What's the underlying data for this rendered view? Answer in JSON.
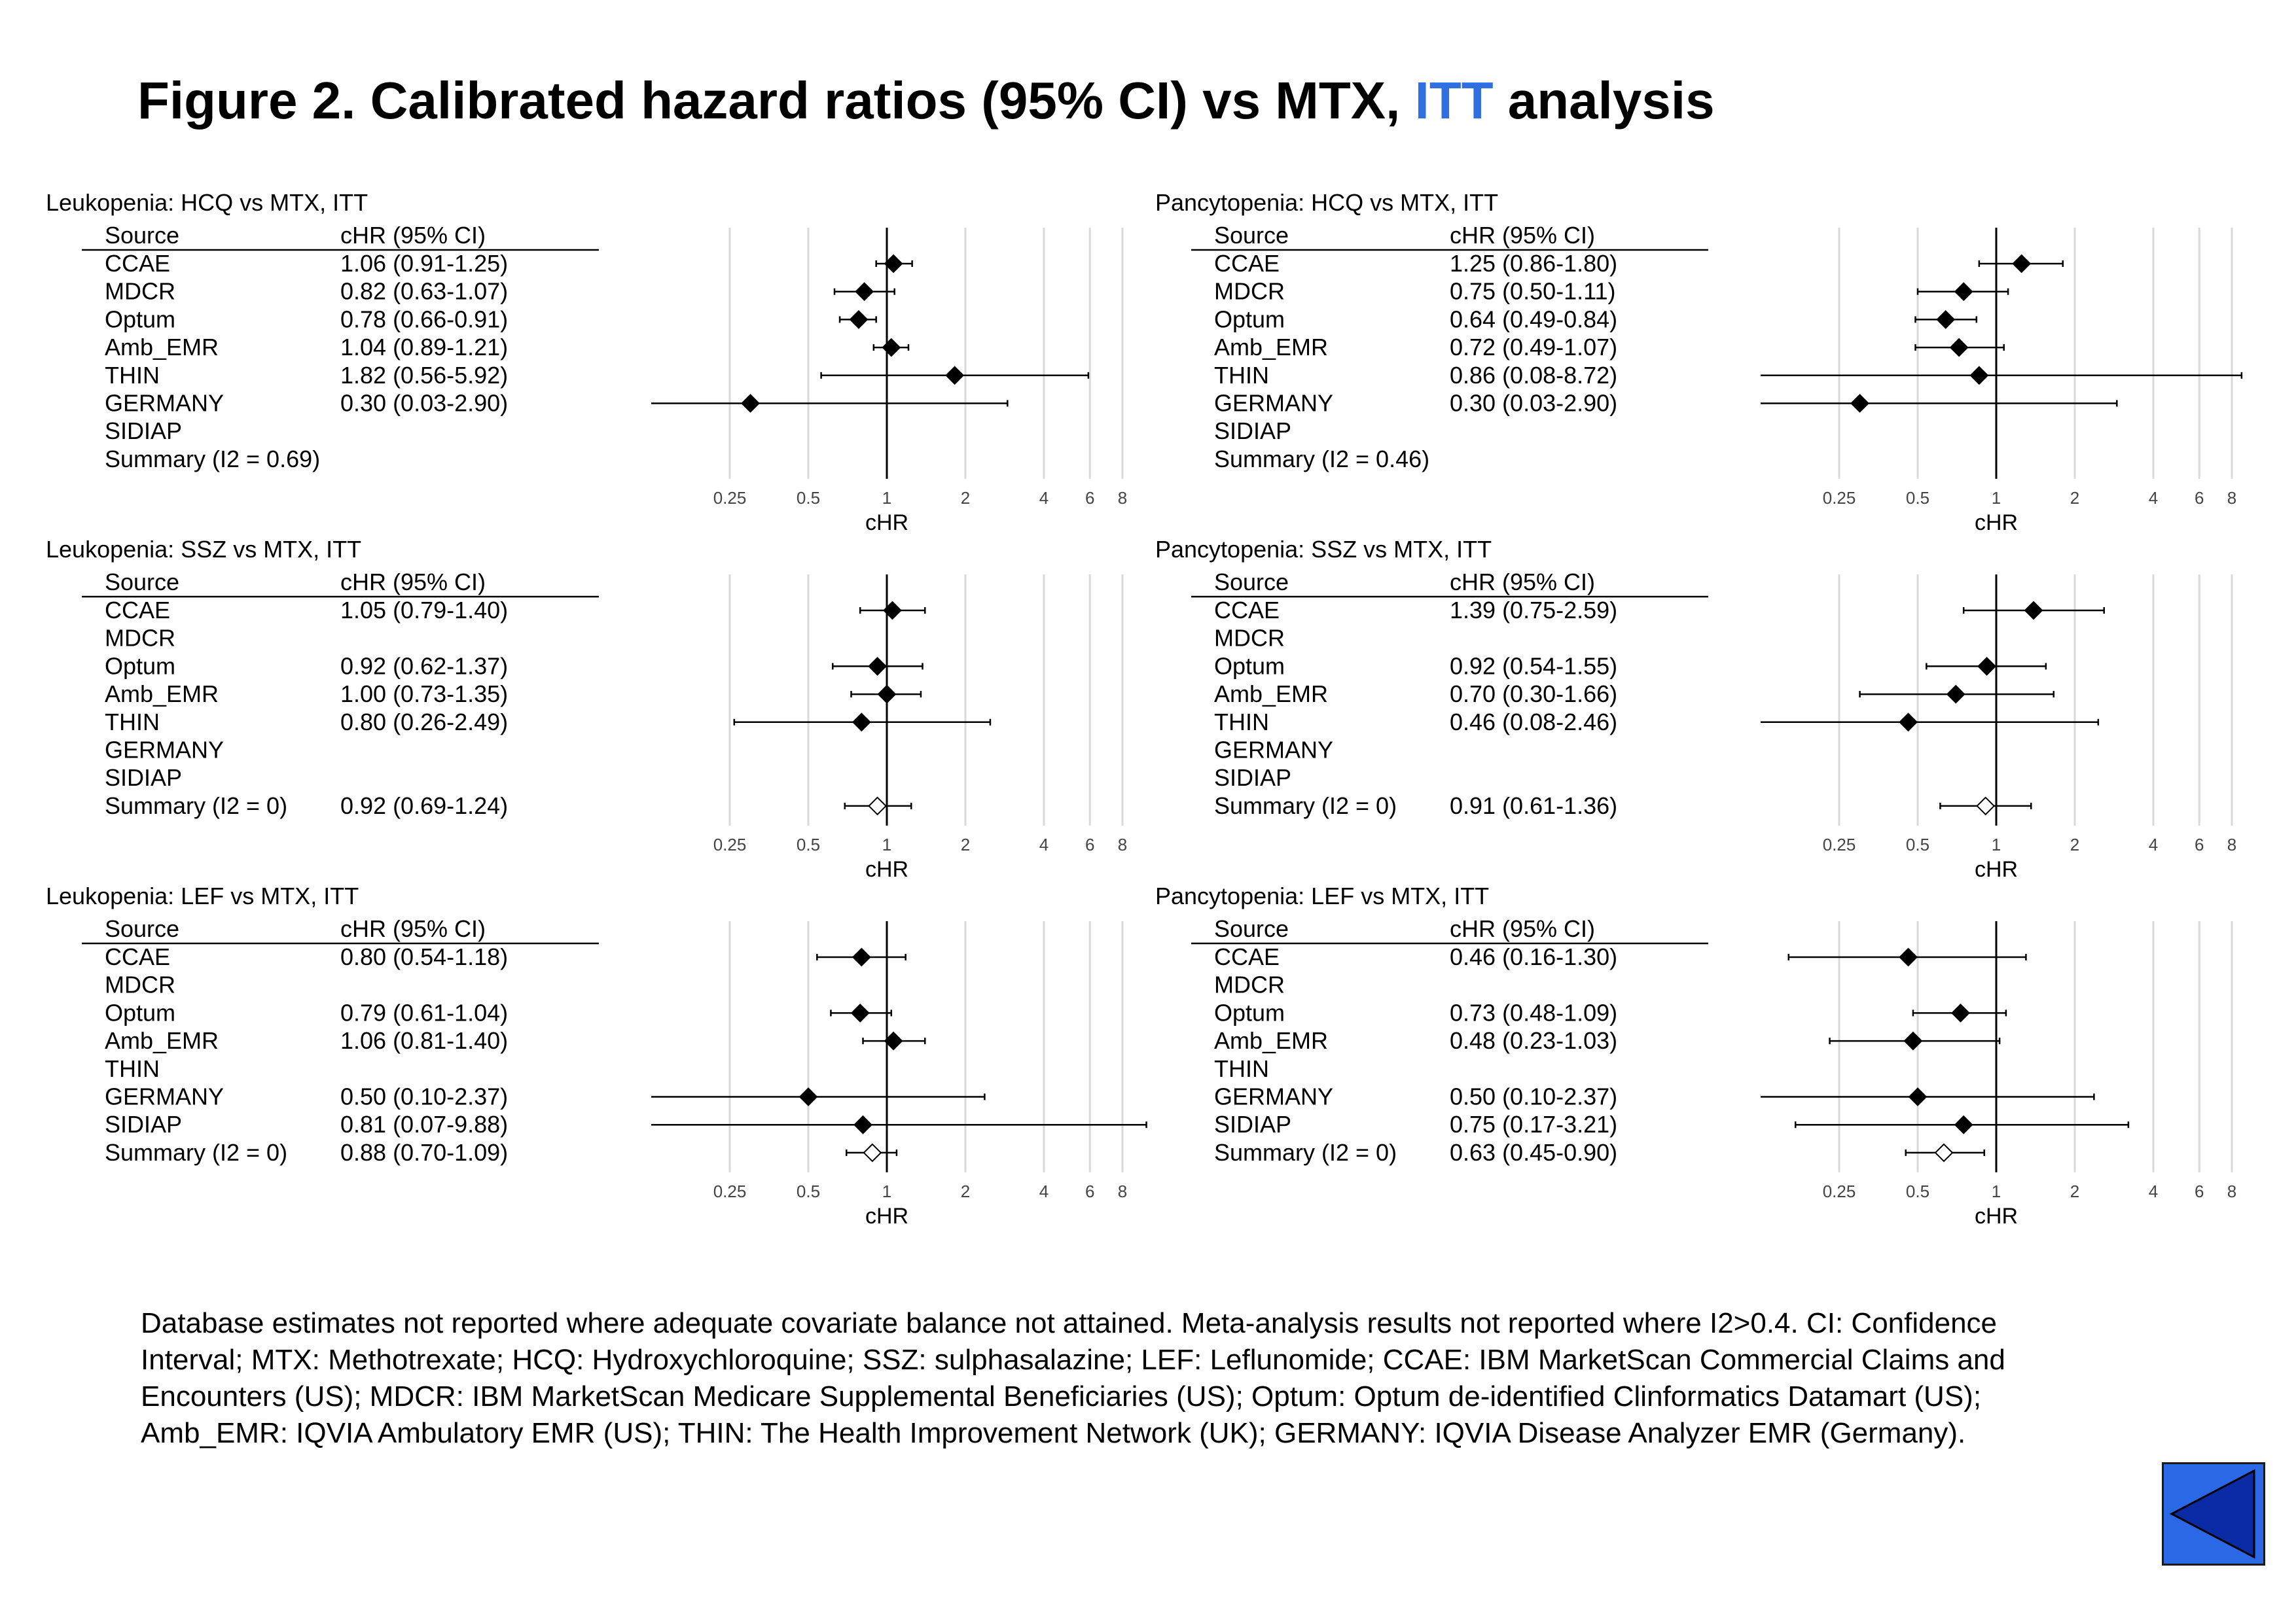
{
  "title": {
    "prefix": "Figure 2. Calibrated hazard ratios (95% CI) vs MTX, ",
    "accent": "ITT",
    "suffix": " analysis",
    "accent_color": "#2f6fe0"
  },
  "chart_data": [
    {
      "type": "forest",
      "title": "Leukopenia: HCQ vs MTX, ITT",
      "col_source": "Source",
      "col_estimate": "cHR (95% CI)",
      "xlabel": "cHR",
      "xscale": "log2",
      "xlim": [
        0.125,
        16
      ],
      "ticks": [
        "0.25",
        "0.5",
        "1",
        "2",
        "4",
        "6",
        "8"
      ],
      "rows": [
        {
          "source": "CCAE",
          "label": "1.06 (0.91-1.25)",
          "hr": 1.06,
          "lo": 0.91,
          "hi": 1.25,
          "summary": false
        },
        {
          "source": "MDCR",
          "label": "0.82 (0.63-1.07)",
          "hr": 0.82,
          "lo": 0.63,
          "hi": 1.07,
          "summary": false
        },
        {
          "source": "Optum",
          "label": "0.78 (0.66-0.91)",
          "hr": 0.78,
          "lo": 0.66,
          "hi": 0.91,
          "summary": false
        },
        {
          "source": "Amb_EMR",
          "label": "1.04 (0.89-1.21)",
          "hr": 1.04,
          "lo": 0.89,
          "hi": 1.21,
          "summary": false
        },
        {
          "source": "THIN",
          "label": "1.82 (0.56-5.92)",
          "hr": 1.82,
          "lo": 0.56,
          "hi": 5.92,
          "summary": false
        },
        {
          "source": "GERMANY",
          "label": "0.30 (0.03-2.90)",
          "hr": 0.3,
          "lo": 0.03,
          "hi": 2.9,
          "summary": false
        },
        {
          "source": "SIDIAP",
          "label": "",
          "hr": null,
          "lo": null,
          "hi": null,
          "summary": false
        },
        {
          "source": "Summary (I2 = 0.69)",
          "label": "",
          "hr": null,
          "lo": null,
          "hi": null,
          "summary": true
        }
      ]
    },
    {
      "type": "forest",
      "title": "Pancytopenia: HCQ vs MTX, ITT",
      "col_source": "Source",
      "col_estimate": "cHR (95% CI)",
      "xlabel": "cHR",
      "xscale": "log2",
      "xlim": [
        0.125,
        16
      ],
      "ticks": [
        "0.25",
        "0.5",
        "1",
        "2",
        "4",
        "6",
        "8"
      ],
      "rows": [
        {
          "source": "CCAE",
          "label": "1.25 (0.86-1.80)",
          "hr": 1.25,
          "lo": 0.86,
          "hi": 1.8,
          "summary": false
        },
        {
          "source": "MDCR",
          "label": "0.75 (0.50-1.11)",
          "hr": 0.75,
          "lo": 0.5,
          "hi": 1.11,
          "summary": false
        },
        {
          "source": "Optum",
          "label": "0.64 (0.49-0.84)",
          "hr": 0.64,
          "lo": 0.49,
          "hi": 0.84,
          "summary": false
        },
        {
          "source": "Amb_EMR",
          "label": "0.72 (0.49-1.07)",
          "hr": 0.72,
          "lo": 0.49,
          "hi": 1.07,
          "summary": false
        },
        {
          "source": "THIN",
          "label": "0.86 (0.08-8.72)",
          "hr": 0.86,
          "lo": 0.08,
          "hi": 8.72,
          "summary": false
        },
        {
          "source": "GERMANY",
          "label": "0.30 (0.03-2.90)",
          "hr": 0.3,
          "lo": 0.03,
          "hi": 2.9,
          "summary": false
        },
        {
          "source": "SIDIAP",
          "label": "",
          "hr": null,
          "lo": null,
          "hi": null,
          "summary": false
        },
        {
          "source": "Summary (I2 = 0.46)",
          "label": "",
          "hr": null,
          "lo": null,
          "hi": null,
          "summary": true
        }
      ]
    },
    {
      "type": "forest",
      "title": "Leukopenia: SSZ vs MTX, ITT",
      "col_source": "Source",
      "col_estimate": "cHR (95% CI)",
      "xlabel": "cHR",
      "xscale": "log2",
      "xlim": [
        0.125,
        16
      ],
      "ticks": [
        "0.25",
        "0.5",
        "1",
        "2",
        "4",
        "6",
        "8"
      ],
      "rows": [
        {
          "source": "CCAE",
          "label": "1.05 (0.79-1.40)",
          "hr": 1.05,
          "lo": 0.79,
          "hi": 1.4,
          "summary": false
        },
        {
          "source": "MDCR",
          "label": "",
          "hr": null,
          "lo": null,
          "hi": null,
          "summary": false
        },
        {
          "source": "Optum",
          "label": "0.92 (0.62-1.37)",
          "hr": 0.92,
          "lo": 0.62,
          "hi": 1.37,
          "summary": false
        },
        {
          "source": "Amb_EMR",
          "label": "1.00 (0.73-1.35)",
          "hr": 1.0,
          "lo": 0.73,
          "hi": 1.35,
          "summary": false
        },
        {
          "source": "THIN",
          "label": "0.80 (0.26-2.49)",
          "hr": 0.8,
          "lo": 0.26,
          "hi": 2.49,
          "summary": false
        },
        {
          "source": "GERMANY",
          "label": "",
          "hr": null,
          "lo": null,
          "hi": null,
          "summary": false
        },
        {
          "source": "SIDIAP",
          "label": "",
          "hr": null,
          "lo": null,
          "hi": null,
          "summary": false
        },
        {
          "source": "Summary (I2 = 0)",
          "label": "0.92 (0.69-1.24)",
          "hr": 0.92,
          "lo": 0.69,
          "hi": 1.24,
          "summary": true
        }
      ]
    },
    {
      "type": "forest",
      "title": "Pancytopenia: SSZ vs MTX, ITT",
      "col_source": "Source",
      "col_estimate": "cHR (95% CI)",
      "xlabel": "cHR",
      "xscale": "log2",
      "xlim": [
        0.125,
        16
      ],
      "ticks": [
        "0.25",
        "0.5",
        "1",
        "2",
        "4",
        "6",
        "8"
      ],
      "rows": [
        {
          "source": "CCAE",
          "label": "1.39 (0.75-2.59)",
          "hr": 1.39,
          "lo": 0.75,
          "hi": 2.59,
          "summary": false
        },
        {
          "source": "MDCR",
          "label": "",
          "hr": null,
          "lo": null,
          "hi": null,
          "summary": false
        },
        {
          "source": "Optum",
          "label": "0.92 (0.54-1.55)",
          "hr": 0.92,
          "lo": 0.54,
          "hi": 1.55,
          "summary": false
        },
        {
          "source": "Amb_EMR",
          "label": "0.70 (0.30-1.66)",
          "hr": 0.7,
          "lo": 0.3,
          "hi": 1.66,
          "summary": false
        },
        {
          "source": "THIN",
          "label": "0.46 (0.08-2.46)",
          "hr": 0.46,
          "lo": 0.08,
          "hi": 2.46,
          "summary": false
        },
        {
          "source": "GERMANY",
          "label": "",
          "hr": null,
          "lo": null,
          "hi": null,
          "summary": false
        },
        {
          "source": "SIDIAP",
          "label": "",
          "hr": null,
          "lo": null,
          "hi": null,
          "summary": false
        },
        {
          "source": "Summary (I2 = 0)",
          "label": "0.91 (0.61-1.36)",
          "hr": 0.91,
          "lo": 0.61,
          "hi": 1.36,
          "summary": true
        }
      ]
    },
    {
      "type": "forest",
      "title": "Leukopenia: LEF vs MTX, ITT",
      "col_source": "Source",
      "col_estimate": "cHR (95% CI)",
      "xlabel": "cHR",
      "xscale": "log2",
      "xlim": [
        0.125,
        16
      ],
      "ticks": [
        "0.25",
        "0.5",
        "1",
        "2",
        "4",
        "6",
        "8"
      ],
      "rows": [
        {
          "source": "CCAE",
          "label": "0.80 (0.54-1.18)",
          "hr": 0.8,
          "lo": 0.54,
          "hi": 1.18,
          "summary": false
        },
        {
          "source": "MDCR",
          "label": "",
          "hr": null,
          "lo": null,
          "hi": null,
          "summary": false
        },
        {
          "source": "Optum",
          "label": "0.79 (0.61-1.04)",
          "hr": 0.79,
          "lo": 0.61,
          "hi": 1.04,
          "summary": false
        },
        {
          "source": "Amb_EMR",
          "label": "1.06 (0.81-1.40)",
          "hr": 1.06,
          "lo": 0.81,
          "hi": 1.4,
          "summary": false
        },
        {
          "source": "THIN",
          "label": "",
          "hr": null,
          "lo": null,
          "hi": null,
          "summary": false
        },
        {
          "source": "GERMANY",
          "label": "0.50 (0.10-2.37)",
          "hr": 0.5,
          "lo": 0.1,
          "hi": 2.37,
          "summary": false
        },
        {
          "source": "SIDIAP",
          "label": "0.81 (0.07-9.88)",
          "hr": 0.81,
          "lo": 0.07,
          "hi": 9.88,
          "summary": false
        },
        {
          "source": "Summary (I2 = 0)",
          "label": "0.88 (0.70-1.09)",
          "hr": 0.88,
          "lo": 0.7,
          "hi": 1.09,
          "summary": true
        }
      ]
    },
    {
      "type": "forest",
      "title": "Pancytopenia: LEF vs MTX, ITT",
      "col_source": "Source",
      "col_estimate": "cHR (95% CI)",
      "xlabel": "cHR",
      "xscale": "log2",
      "xlim": [
        0.125,
        16
      ],
      "ticks": [
        "0.25",
        "0.5",
        "1",
        "2",
        "4",
        "6",
        "8"
      ],
      "rows": [
        {
          "source": "CCAE",
          "label": "0.46 (0.16-1.30)",
          "hr": 0.46,
          "lo": 0.16,
          "hi": 1.3,
          "summary": false
        },
        {
          "source": "MDCR",
          "label": "",
          "hr": null,
          "lo": null,
          "hi": null,
          "summary": false
        },
        {
          "source": "Optum",
          "label": "0.73 (0.48-1.09)",
          "hr": 0.73,
          "lo": 0.48,
          "hi": 1.09,
          "summary": false
        },
        {
          "source": "Amb_EMR",
          "label": "0.48 (0.23-1.03)",
          "hr": 0.48,
          "lo": 0.23,
          "hi": 1.03,
          "summary": false
        },
        {
          "source": "THIN",
          "label": "",
          "hr": null,
          "lo": null,
          "hi": null,
          "summary": false
        },
        {
          "source": "GERMANY",
          "label": "0.50 (0.10-2.37)",
          "hr": 0.5,
          "lo": 0.1,
          "hi": 2.37,
          "summary": false
        },
        {
          "source": "SIDIAP",
          "label": "0.75 (0.17-3.21)",
          "hr": 0.75,
          "lo": 0.17,
          "hi": 3.21,
          "summary": false
        },
        {
          "source": "Summary (I2 = 0)",
          "label": "0.63 (0.45-0.90)",
          "hr": 0.63,
          "lo": 0.45,
          "hi": 0.9,
          "summary": true
        }
      ]
    }
  ],
  "footnote": "Database estimates not reported where adequate covariate balance not attained.  Meta-analysis results not reported where I2>0.4. CI: Confidence Interval; MTX: Methotrexate; HCQ: Hydroxychloroquine; SSZ: sulphasalazine; LEF: Leflunomide; CCAE: IBM MarketScan Commercial Claims and Encounters (US); MDCR: IBM MarketScan Medicare Supplemental Beneficiaries (US); Optum: Optum de-identified Clinformatics Datamart (US); Amb_EMR: IQVIA Ambulatory EMR (US); THIN: The Health Improvement Network (UK); GERMANY: IQVIA Disease Analyzer EMR (Germany).",
  "nav": {
    "back_icon": "back-triangle-icon",
    "button_color": "#2b68e6",
    "icon_color": "#0a2aa6"
  }
}
